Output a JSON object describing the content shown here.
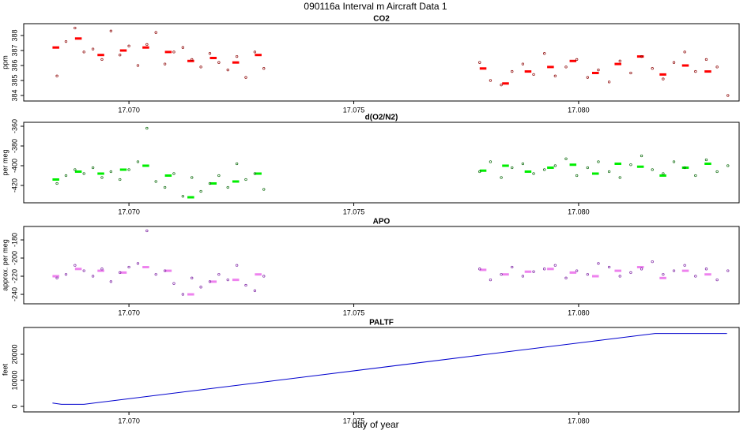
{
  "title": "090116a   Interval m Aircraft Data 1",
  "xlabel": "day of year",
  "chart_data": [
    {
      "type": "scatter",
      "title": "CO2",
      "ylabel": "ppm",
      "color": "#8b0000",
      "mean_color": "#ff0000",
      "x": [
        17.0684,
        17.0686,
        17.0688,
        17.069,
        17.0692,
        17.0694,
        17.0696,
        17.0698,
        17.07,
        17.0702,
        17.0704,
        17.0706,
        17.0708,
        17.071,
        17.0712,
        17.0714,
        17.0716,
        17.0718,
        17.072,
        17.0722,
        17.0724,
        17.0726,
        17.0728,
        17.073,
        17.0778,
        17.07804,
        17.07828,
        17.07852,
        17.07876,
        17.079,
        17.07924,
        17.07948,
        17.07972,
        17.07996,
        17.0802,
        17.08044,
        17.08068,
        17.08092,
        17.08116,
        17.0814,
        17.08164,
        17.08188,
        17.08212,
        17.08236,
        17.0826,
        17.08284,
        17.08308,
        17.08332
      ],
      "values": [
        385.3,
        387.6,
        388.5,
        386.9,
        387.1,
        386.4,
        388.3,
        386.7,
        387.3,
        386.0,
        387.4,
        388.2,
        386.1,
        386.9,
        387.2,
        386.4,
        385.9,
        386.8,
        386.2,
        385.7,
        386.6,
        385.2,
        386.9,
        385.8,
        386.2,
        385.0,
        384.7,
        385.6,
        386.1,
        385.4,
        386.8,
        385.3,
        385.9,
        386.4,
        385.2,
        385.7,
        384.9,
        386.3,
        385.5,
        386.6,
        385.8,
        385.1,
        386.2,
        386.9,
        385.6,
        386.4,
        385.9,
        384.0
      ],
      "means": {
        "x_start": [
          17.0683,
          17.0688,
          17.0693,
          17.0698,
          17.0703,
          17.0708,
          17.0713,
          17.0718,
          17.0723,
          17.0728,
          17.0778,
          17.0783,
          17.0788,
          17.0793,
          17.0798,
          17.0803,
          17.0808,
          17.0813,
          17.0818,
          17.0823,
          17.0828
        ],
        "x_end": [
          17.06845,
          17.06895,
          17.06945,
          17.06995,
          17.07045,
          17.07095,
          17.07145,
          17.07195,
          17.07245,
          17.07295,
          17.07795,
          17.07845,
          17.07895,
          17.07945,
          17.07995,
          17.08045,
          17.08095,
          17.08145,
          17.08195,
          17.08245,
          17.08295
        ],
        "values": [
          387.2,
          387.8,
          386.7,
          387.0,
          387.2,
          386.9,
          386.3,
          386.5,
          386.2,
          386.7,
          385.8,
          384.8,
          385.6,
          385.9,
          386.3,
          385.5,
          386.1,
          386.6,
          385.4,
          386.0,
          385.6
        ]
      },
      "xlim": [
        17.06766,
        17.08357
      ],
      "ylim": [
        383.63,
        388.79
      ],
      "xticks": [
        {
          "value": 17.07,
          "label": "17.070"
        },
        {
          "value": 17.075,
          "label": "17.075"
        },
        {
          "value": 17.08,
          "label": "17.080"
        }
      ],
      "yticks": [
        384,
        385,
        386,
        387,
        388
      ]
    },
    {
      "type": "scatter",
      "title": "d(O2/N2)",
      "ylabel": "per meg",
      "color": "#006400",
      "mean_color": "#00ee00",
      "x": [
        17.0684,
        17.0686,
        17.0688,
        17.069,
        17.0692,
        17.0694,
        17.0696,
        17.0698,
        17.07,
        17.0702,
        17.0704,
        17.0706,
        17.0708,
        17.071,
        17.0712,
        17.0714,
        17.0716,
        17.0718,
        17.072,
        17.0722,
        17.0724,
        17.0726,
        17.0728,
        17.073,
        17.0778,
        17.07804,
        17.07828,
        17.07852,
        17.07876,
        17.079,
        17.07924,
        17.07948,
        17.07972,
        17.07996,
        17.0802,
        17.08044,
        17.08068,
        17.08092,
        17.08116,
        17.0814,
        17.08164,
        17.08188,
        17.08212,
        17.08236,
        17.0826,
        17.08284,
        17.08308,
        17.08332
      ],
      "values": [
        -418,
        -410,
        -404,
        -408,
        -402,
        -412,
        -406,
        -414,
        -404,
        -396,
        -362,
        -416,
        -422,
        -408,
        -431,
        -412,
        -426,
        -418,
        -410,
        -422,
        -398,
        -414,
        -408,
        -424,
        -406,
        -396,
        -412,
        -402,
        -398,
        -408,
        -404,
        -400,
        -393,
        -410,
        -402,
        -396,
        -406,
        -412,
        -399,
        -390,
        -404,
        -408,
        -396,
        -402,
        -410,
        -394,
        -406,
        -400
      ],
      "means": {
        "x_start": [
          17.0683,
          17.0688,
          17.0693,
          17.0698,
          17.0703,
          17.0708,
          17.0713,
          17.0718,
          17.0723,
          17.0728,
          17.0778,
          17.0783,
          17.0788,
          17.0793,
          17.0798,
          17.0803,
          17.0808,
          17.0813,
          17.0818,
          17.0823,
          17.0828
        ],
        "x_end": [
          17.06845,
          17.06895,
          17.06945,
          17.06995,
          17.07045,
          17.07095,
          17.07145,
          17.07195,
          17.07245,
          17.07295,
          17.07795,
          17.07845,
          17.07895,
          17.07945,
          17.07995,
          17.08045,
          17.08095,
          17.08145,
          17.08195,
          17.08245,
          17.08295
        ],
        "values": [
          -414,
          -406,
          -408,
          -404,
          -400,
          -410,
          -432,
          -418,
          -416,
          -408,
          -405,
          -400,
          -406,
          -402,
          -399,
          -408,
          -398,
          -401,
          -410,
          -402,
          -398
        ]
      },
      "xlim": [
        17.06766,
        17.08357
      ],
      "ylim": [
        -437.6,
        -356
      ],
      "xticks": [
        {
          "value": 17.07,
          "label": "17.070"
        },
        {
          "value": 17.075,
          "label": "17.075"
        },
        {
          "value": 17.08,
          "label": "17.080"
        }
      ],
      "yticks": [
        -420,
        -400,
        -380,
        -360
      ]
    },
    {
      "type": "scatter",
      "title": "APO",
      "ylabel": "approx. per meg",
      "color": "#7b1fa2",
      "mean_color": "#ee82ee",
      "x": [
        17.0684,
        17.0686,
        17.0688,
        17.069,
        17.0692,
        17.0694,
        17.0696,
        17.0698,
        17.07,
        17.0702,
        17.0704,
        17.0706,
        17.0708,
        17.071,
        17.0712,
        17.0714,
        17.0716,
        17.0718,
        17.072,
        17.0722,
        17.0724,
        17.0726,
        17.0728,
        17.073,
        17.0778,
        17.07804,
        17.07828,
        17.07852,
        17.07876,
        17.079,
        17.07924,
        17.07948,
        17.07972,
        17.07996,
        17.0802,
        17.08044,
        17.08068,
        17.08092,
        17.08116,
        17.0814,
        17.08164,
        17.08188,
        17.08212,
        17.08236,
        17.0826,
        17.08284,
        17.08308,
        17.08332
      ],
      "values": [
        -222,
        -218,
        -208,
        -214,
        -220,
        -212,
        -226,
        -216,
        -210,
        -206,
        -170,
        -218,
        -214,
        -228,
        -240,
        -222,
        -232,
        -226,
        -218,
        -224,
        -208,
        -230,
        -236,
        -220,
        -212,
        -224,
        -218,
        -210,
        -220,
        -215,
        -212,
        -208,
        -222,
        -214,
        -218,
        -206,
        -210,
        -220,
        -216,
        -212,
        -204,
        -218,
        -214,
        -208,
        -220,
        -212,
        -224,
        -214
      ],
      "means": {
        "x_start": [
          17.0683,
          17.0688,
          17.0693,
          17.0698,
          17.0703,
          17.0708,
          17.0713,
          17.0718,
          17.0723,
          17.0728,
          17.0778,
          17.0783,
          17.0788,
          17.0793,
          17.0798,
          17.0803,
          17.0808,
          17.0813,
          17.0818,
          17.0823,
          17.0828
        ],
        "x_end": [
          17.06845,
          17.06895,
          17.06945,
          17.06995,
          17.07045,
          17.07095,
          17.07145,
          17.07195,
          17.07245,
          17.07295,
          17.07795,
          17.07845,
          17.07895,
          17.07945,
          17.07995,
          17.08045,
          17.08095,
          17.08145,
          17.08195,
          17.08245,
          17.08295
        ],
        "values": [
          -220,
          -212,
          -214,
          -216,
          -210,
          -214,
          -240,
          -226,
          -224,
          -218,
          -213,
          -218,
          -215,
          -212,
          -216,
          -220,
          -214,
          -210,
          -222,
          -214,
          -218
        ]
      },
      "xlim": [
        17.06766,
        17.08357
      ],
      "ylim": [
        -250.4,
        -165.2
      ],
      "xticks": [
        {
          "value": 17.07,
          "label": "17.070"
        },
        {
          "value": 17.075,
          "label": "17.075"
        },
        {
          "value": 17.08,
          "label": "17.080"
        }
      ],
      "yticks": [
        -240,
        -220,
        -200,
        -180
      ]
    },
    {
      "type": "line",
      "title": "PALTF",
      "ylabel": "feet",
      "color": "#0000cd",
      "x": [
        17.0683,
        17.0685,
        17.069,
        17.0817,
        17.0833
      ],
      "values": [
        1300,
        800,
        800,
        28000,
        28000
      ],
      "xlim": [
        17.06766,
        17.08357
      ],
      "ylim": [
        -2120,
        30300
      ],
      "xticks": [
        {
          "value": 17.07,
          "label": "17.070"
        },
        {
          "value": 17.075,
          "label": "17.075"
        },
        {
          "value": 17.08,
          "label": "17.080"
        }
      ],
      "yticks": [
        0,
        10000,
        20000
      ]
    }
  ]
}
